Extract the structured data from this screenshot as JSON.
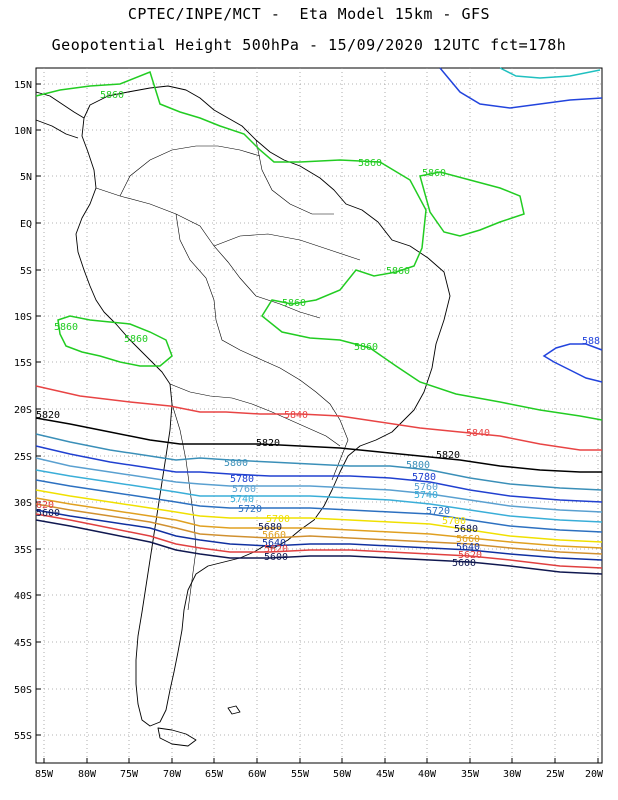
{
  "title": {
    "line1": "CPTEC/INPE/MCT -  Eta Model 15km - GFS",
    "line2": "Geopotential Height 500hPa - 15/09/2020 12UTC fct=178h"
  },
  "axes": {
    "lat_labels": [
      "15N",
      "10N",
      "5N",
      "EQ",
      "5S",
      "10S",
      "15S",
      "20S",
      "25S",
      "30S",
      "35S",
      "40S",
      "45S",
      "50S",
      "55S"
    ],
    "lon_labels": [
      "85W",
      "80W",
      "75W",
      "70W",
      "65W",
      "60W",
      "55W",
      "50W",
      "45W",
      "40W",
      "35W",
      "30W",
      "25W",
      "20W"
    ]
  },
  "colors": {
    "c5860": "#22cc22",
    "c5840": "#e84444",
    "c5820": "#000000",
    "c5800": "#3a8fb8",
    "c5780": "#2040d0",
    "c5760": "#5aa0d0",
    "c5740": "#3aaed8",
    "c5720": "#2c70c0",
    "c5700": "#f0e000",
    "c5680": "#e0a020",
    "c5660": "#d09030",
    "c5640": "#1030a0",
    "c5620": "#e04040",
    "c5600": "#101850",
    "c5880": "#2244dd",
    "c5900": "#20c0c0"
  },
  "contour_labels": {
    "l5860_a": "5860",
    "l5860_b": "5860",
    "l5860_c": "5860",
    "l5860_d": "5860",
    "l5860_e": "5860",
    "l5860_f": "5860",
    "l5860_g": "5860",
    "l5860_h": "5860",
    "l5880": "588",
    "l5840_a": "5840",
    "l5840_b": "5840",
    "l5820_a": "5820",
    "l5820_b": "5820",
    "l5820_c": "5820",
    "l5800_a": "5800",
    "l5800_b": "5800",
    "l5780_a": "5780",
    "l5780_b": "5780",
    "l5760_a": "5760",
    "l5760_b": "5760",
    "l5740_a": "5740",
    "l5740_b": "5740",
    "l5720_a": "5720",
    "l5720_b": "5720",
    "l5700_a": "5700",
    "l5700_b": "5700",
    "l5680_a": "5680",
    "l5680_b": "5680",
    "l5660_a": "5660",
    "l5660_b": "5660",
    "l5640_a": "5640",
    "l5640_b": "5640",
    "l5620_a": "5620",
    "l5620_b": "5620",
    "l5620_c": "620",
    "l5600_a": "5600",
    "l5600_b": "5600",
    "l5600_c": "5600"
  }
}
